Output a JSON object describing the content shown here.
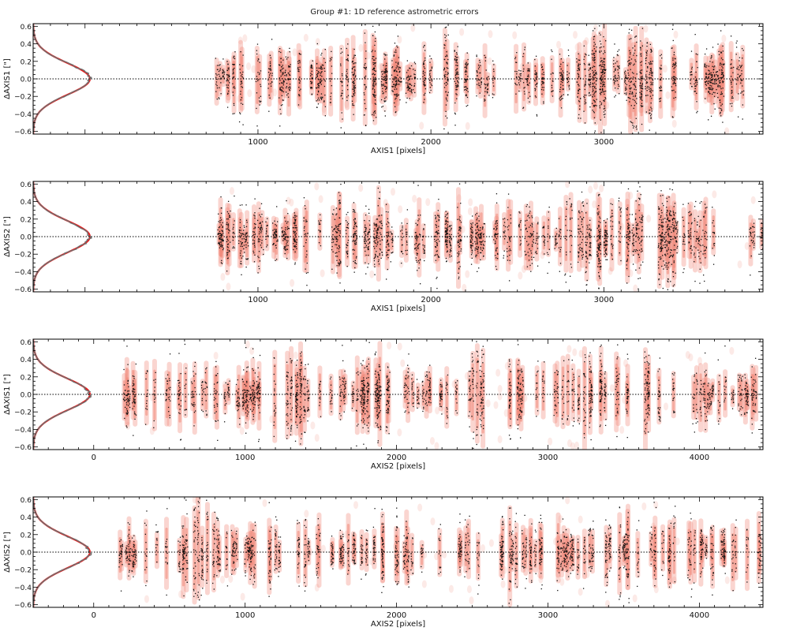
{
  "title": "Group #1: 1D reference astrometric errors",
  "colors": {
    "density": "#f08878",
    "points": "#111111",
    "hist_fit": "#e02020",
    "hist_line": "#707070",
    "zero_line": "#000000"
  },
  "chart_data": [
    {
      "type": "scatter",
      "xlabel": "AXIS1 [pixels]",
      "ylabel": "ΔAXIS1 [\"]",
      "xlim": [
        -300,
        3920
      ],
      "ylim": [
        -0.63,
        0.63
      ],
      "xticks": [
        1000,
        2000,
        3000
      ],
      "yticks": [
        -0.6,
        -0.4,
        -0.2,
        0.0,
        0.2,
        0.4,
        0.6
      ],
      "ytick_labels": [
        "−0.6",
        "−0.4",
        "−0.2",
        "0.0",
        "0.2",
        "0.4",
        "0.6"
      ],
      "reference_line": 0.0,
      "data_range_x": [
        750,
        3820
      ],
      "clusters_x": [
        1600,
        2100,
        2950,
        3250
      ],
      "histogram_peak_y": 0.0,
      "grid": false
    },
    {
      "type": "scatter",
      "xlabel": "AXIS1 [pixels]",
      "ylabel": "ΔAXIS2 [\"]",
      "xlim": [
        -300,
        3920
      ],
      "ylim": [
        -0.63,
        0.63
      ],
      "xticks": [
        1000,
        2000,
        3000
      ],
      "yticks": [
        -0.6,
        -0.4,
        -0.2,
        0.0,
        0.2,
        0.4,
        0.6
      ],
      "ytick_labels": [
        "−0.6",
        "−0.4",
        "−0.2",
        "0.0",
        "0.2",
        "0.4",
        "0.6"
      ],
      "reference_line": 0.0,
      "data_range_x": [
        750,
        3920
      ],
      "clusters_x": [
        1600,
        2100,
        2950,
        3300
      ],
      "histogram_peak_y": 0.0,
      "grid": false
    },
    {
      "type": "scatter",
      "xlabel": "AXIS2 [pixels]",
      "ylabel": "ΔAXIS1 [\"]",
      "xlim": [
        -400,
        4420
      ],
      "ylim": [
        -0.63,
        0.63
      ],
      "xticks": [
        0,
        1000,
        2000,
        3000,
        4000
      ],
      "yticks": [
        -0.6,
        -0.4,
        -0.2,
        0.0,
        0.2,
        0.4,
        0.6
      ],
      "ytick_labels": [
        "−0.6",
        "−0.4",
        "−0.2",
        "0.0",
        "0.2",
        "0.4",
        "0.6"
      ],
      "reference_line": 0.0,
      "data_range_x": [
        170,
        4400
      ],
      "clusters_x": [
        1300,
        1900,
        2600,
        3300,
        3700
      ],
      "histogram_peak_y": 0.0,
      "grid": false
    },
    {
      "type": "scatter",
      "xlabel": "AXIS2 [pixels]",
      "ylabel": "ΔAXIS2 [\"]",
      "xlim": [
        -400,
        4420
      ],
      "ylim": [
        -0.63,
        0.63
      ],
      "xticks": [
        0,
        1000,
        2000,
        3000,
        4000
      ],
      "yticks": [
        -0.6,
        -0.4,
        -0.2,
        0.0,
        0.2,
        0.4,
        0.6
      ],
      "ytick_labels": [
        "−0.6",
        "−0.4",
        "−0.2",
        "0.0",
        "0.2",
        "0.4",
        "0.6"
      ],
      "reference_line": 0.0,
      "data_range_x": [
        170,
        4400
      ],
      "clusters_x": [
        700,
        1300,
        1900,
        2700,
        3400
      ],
      "histogram_peak_y": 0.0,
      "grid": false
    }
  ]
}
